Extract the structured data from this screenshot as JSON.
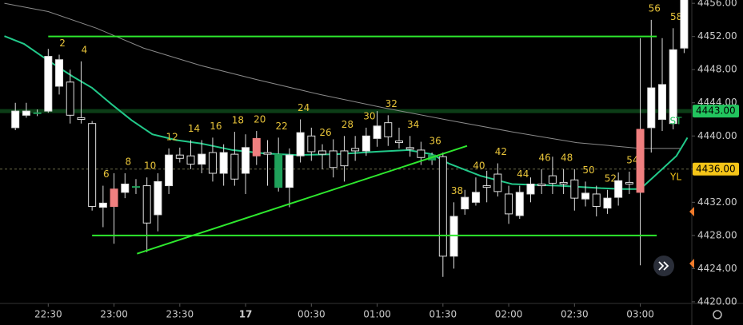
{
  "chart_data": {
    "type": "candlestick",
    "x": [
      -2,
      -1,
      0,
      1,
      2,
      3,
      4,
      5,
      6,
      7,
      8,
      9,
      10,
      11,
      12,
      13,
      14,
      15,
      16,
      17,
      18,
      19,
      20,
      21,
      22,
      23,
      24,
      25,
      26,
      27,
      28,
      29,
      30,
      31,
      32,
      33,
      34,
      35,
      36,
      37,
      38,
      39,
      40,
      41,
      42,
      43,
      44,
      45,
      46,
      47,
      48,
      49,
      50,
      51,
      52,
      53,
      54,
      55,
      56,
      57,
      58,
      59
    ],
    "open": [
      4441,
      4442.5,
      4442.7,
      4443,
      4446,
      4446.5,
      4442.2,
      4441.5,
      4431.4,
      4433.6,
      4433.2,
      4433.8,
      4434,
      4430.5,
      4434,
      4437.7,
      4437.6,
      4436.6,
      4438,
      4435.5,
      4437.8,
      4435.5,
      4439.7,
      4438,
      4437.8,
      4433.8,
      4437.6,
      4440,
      4438.2,
      4438.2,
      4438.2,
      4438.5,
      4438.2,
      4439.7,
      4441.6,
      4439.4,
      4438.6,
      4438.3,
      4437.7,
      4437.5,
      4425.5,
      4431.2,
      4432,
      4434,
      4435.4,
      4433,
      4430.4,
      4433,
      4434.2,
      4435.2,
      4434.4,
      4434.7,
      4432.4,
      4433,
      4431.3,
      4432.6,
      4434.4,
      4440.8,
      4441,
      4442,
      4441.5,
      4450.6
    ],
    "high": [
      4444,
      4444,
      4443.2,
      4450.5,
      4449.8,
      4448,
      4449,
      4441.8,
      4434,
      4435.5,
      4435.5,
      4434.8,
      4435,
      4435.5,
      4438.5,
      4438.6,
      4439.5,
      4439.5,
      4439.8,
      4439,
      4440.5,
      4440.2,
      4440.6,
      4439.5,
      4439.8,
      4438.5,
      4442,
      4441,
      4439,
      4439.6,
      4440,
      4440,
      4441,
      4443,
      4442.5,
      4441,
      4440,
      4439.3,
      4438,
      4438,
      4432,
      4433.5,
      4435,
      4435.8,
      4436.7,
      4434,
      4434,
      4435,
      4436,
      4437.5,
      4436,
      4436,
      4434.5,
      4434,
      4433.5,
      4435.6,
      4435.7,
      4451.8,
      4454,
      4451.8,
      4453,
      4457
    ],
    "low": [
      4440.7,
      4442.2,
      4442.4,
      4442.8,
      4445,
      4441.5,
      4441.5,
      4431,
      4429,
      4427,
      4432.5,
      4433,
      4426,
      4428.5,
      4433,
      4436.8,
      4436,
      4435.5,
      4434.5,
      4434,
      4434,
      4433,
      4436.5,
      4434,
      4433.3,
      4431.4,
      4436.8,
      4437,
      4436,
      4435,
      4434.5,
      4437,
      4437.6,
      4438.7,
      4438.8,
      4438.5,
      4437.5,
      4436.5,
      4436.5,
      4423,
      4424,
      4430.5,
      4431.6,
      4432,
      4432.7,
      4429.4,
      4430,
      4432,
      4433,
      4433,
      4433,
      4431,
      4431.5,
      4430.3,
      4430.6,
      4431.6,
      4433,
      4424.4,
      4438,
      4440.6,
      4440.8,
      4450
    ],
    "close": [
      4443,
      4443,
      4442.8,
      4449.6,
      4449.2,
      4442.5,
      4442,
      4431.5,
      4431.9,
      4431.5,
      4434.2,
      4433.9,
      4429.5,
      4434.5,
      4437.7,
      4437.3,
      4436.6,
      4437.8,
      4435.5,
      4438,
      4434.8,
      4438.6,
      4437.6,
      4437.8,
      4433.8,
      4437.7,
      4440.4,
      4438.1,
      4437.8,
      4436.2,
      4436.4,
      4438.2,
      4440,
      4441.2,
      4439.9,
      4439.2,
      4438.4,
      4437.4,
      4437.1,
      4425.5,
      4430.3,
      4432.6,
      4433.2,
      4433.8,
      4433.3,
      4430.6,
      4433.2,
      4434.2,
      4434,
      4434.3,
      4434.2,
      4432.5,
      4433.1,
      4431.5,
      4432.5,
      4434.6,
      4434.2,
      4433.2,
      4445.8,
      4446.2,
      4450.4,
      4457
    ],
    "up_color": "#ffffff",
    "down_color": "#000000",
    "highlights": [
      {
        "x": 0,
        "color": "#1fa05a"
      },
      {
        "x": 7,
        "color": "#ef7f7f"
      },
      {
        "x": 9,
        "color": "#1fa05a"
      },
      {
        "x": 20,
        "color": "#ef7f7f"
      },
      {
        "x": 22,
        "color": "#1fa05a"
      },
      {
        "x": 36,
        "color": "#1fa05a"
      },
      {
        "x": 55,
        "color": "#ef7f7f"
      }
    ],
    "xlim": [
      -3.4,
      59.7
    ],
    "ylim": [
      4419.8,
      4456.4
    ],
    "xticks": [
      {
        "value": 1,
        "label": "22:30"
      },
      {
        "value": 7,
        "label": "23:00"
      },
      {
        "value": 13,
        "label": "23:30"
      },
      {
        "value": 19,
        "label": "17"
      },
      {
        "value": 25,
        "label": "00:30"
      },
      {
        "value": 31,
        "label": "01:00"
      },
      {
        "value": 37,
        "label": "01:30"
      },
      {
        "value": 43,
        "label": "02:00"
      },
      {
        "value": 49,
        "label": "02:30"
      },
      {
        "value": 55,
        "label": "03:00"
      }
    ],
    "yticks": [
      {
        "value": 4456,
        "label": "4456.00"
      },
      {
        "value": 4452,
        "label": "4452.00"
      },
      {
        "value": 4448,
        "label": "4448.00"
      },
      {
        "value": 4444,
        "label": "4444.00"
      },
      {
        "value": 4440,
        "label": "4440.00"
      },
      {
        "value": 4436,
        "label": "4436.00"
      },
      {
        "value": 4432,
        "label": "4432.00"
      },
      {
        "value": 4428,
        "label": "4428.00"
      },
      {
        "value": 4424,
        "label": "4424.00"
      },
      {
        "value": 4420,
        "label": "4420.00"
      }
    ],
    "overlays": [
      {
        "color": "#8a8a8a",
        "x": [
          -3,
          1,
          5.4,
          9.7,
          14.9,
          20,
          25.8,
          31.6,
          37.5,
          43.3,
          49.2,
          55,
          58.7
        ],
        "values": [
          4456,
          4455,
          4453,
          4450.6,
          4448.5,
          4446.8,
          4445,
          4443.4,
          4441.9,
          4440.5,
          4439.2,
          4438.5,
          4438.5
        ]
      },
      {
        "color": "#22c98a",
        "x": [
          -3,
          -1.2,
          1,
          3.2,
          5,
          6.8,
          8.6,
          10.5,
          12.7,
          14.9,
          17.8,
          20.7,
          23.6,
          27.3,
          30.9,
          33.8,
          36,
          37.5,
          40.4,
          43.3,
          47.7,
          51.4,
          53.5,
          55,
          56.5,
          58.3,
          59.3
        ],
        "values": [
          4452.05,
          4451.1,
          4449.1,
          4447.2,
          4445.8,
          4443.8,
          4441.9,
          4440.2,
          4439.5,
          4439.1,
          4438.3,
          4437.9,
          4437.7,
          4437.8,
          4438.1,
          4438.3,
          4437.8,
          4436.7,
          4435.2,
          4434.2,
          4434,
          4433.7,
          4433.6,
          4433.6,
          4435.4,
          4437.6,
          4439.8
        ]
      }
    ],
    "levels": [
      {
        "value": 4452,
        "x": [
          1,
          56.5
        ],
        "color": "#2ee82e"
      },
      {
        "value": 4428,
        "x": [
          5,
          56.5
        ],
        "color": "#2ee82e"
      }
    ],
    "trendline": {
      "x": [
        9.1,
        39.2
      ],
      "values": [
        4425.8,
        4438.8
      ],
      "color": "#2ee82e"
    },
    "band": {
      "value": 4443,
      "color": "#0c3d17"
    },
    "dashed": {
      "value": 4436,
      "color": "#6b6b4a"
    },
    "price_labels": [
      {
        "value": 4443,
        "label": "4443.00",
        "color": "#22c55e"
      },
      {
        "value": 4436,
        "label": "4436.00",
        "color": "#f5c518"
      }
    ],
    "tags": [
      {
        "label": "ST",
        "color": "#22c55e"
      },
      {
        "label": "YL",
        "color": "#f5c518"
      }
    ],
    "bar_label_color": "#e8c43a"
  }
}
